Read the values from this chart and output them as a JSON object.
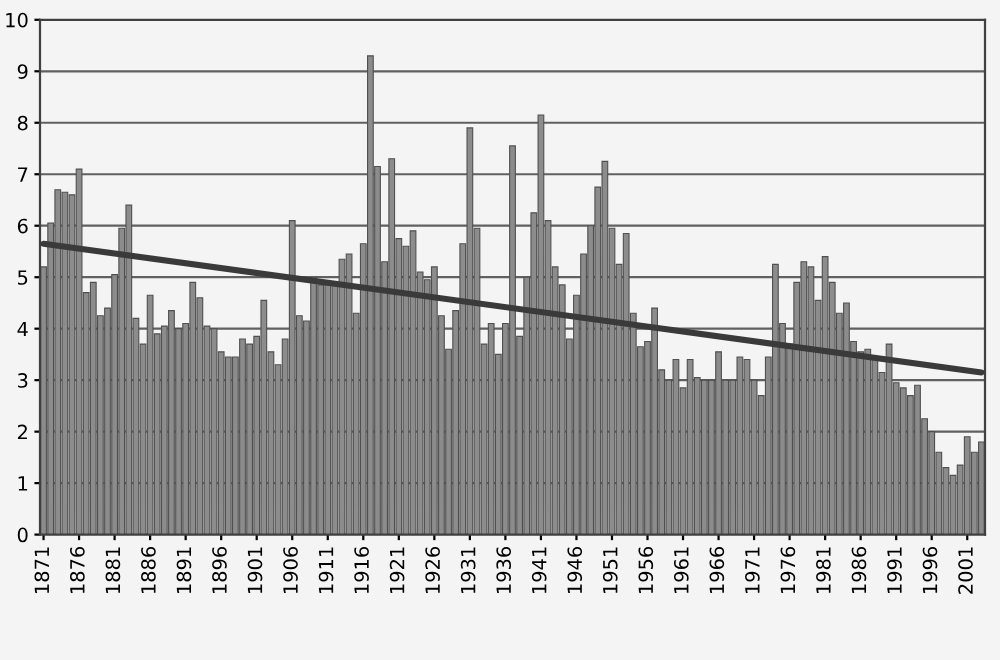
{
  "chart_data": {
    "type": "bar",
    "x": [
      1871,
      1872,
      1873,
      1874,
      1875,
      1876,
      1877,
      1878,
      1879,
      1880,
      1881,
      1882,
      1883,
      1884,
      1885,
      1886,
      1887,
      1888,
      1889,
      1890,
      1891,
      1892,
      1893,
      1894,
      1895,
      1896,
      1897,
      1898,
      1899,
      1900,
      1901,
      1902,
      1903,
      1904,
      1905,
      1906,
      1907,
      1908,
      1909,
      1910,
      1911,
      1912,
      1913,
      1914,
      1915,
      1916,
      1917,
      1918,
      1919,
      1920,
      1921,
      1922,
      1923,
      1924,
      1925,
      1926,
      1927,
      1928,
      1929,
      1930,
      1931,
      1932,
      1933,
      1934,
      1935,
      1936,
      1937,
      1938,
      1939,
      1940,
      1941,
      1942,
      1943,
      1944,
      1945,
      1946,
      1947,
      1948,
      1949,
      1950,
      1951,
      1952,
      1953,
      1954,
      1955,
      1956,
      1957,
      1958,
      1959,
      1960,
      1961,
      1962,
      1963,
      1964,
      1965,
      1966,
      1967,
      1968,
      1969,
      1970,
      1971,
      1972,
      1973,
      1974,
      1975,
      1976,
      1977,
      1978,
      1979,
      1980,
      1981,
      1982,
      1983,
      1984,
      1985,
      1986,
      1987,
      1988,
      1989,
      1990,
      1991,
      1992,
      1993,
      1994,
      1995,
      1996,
      1997,
      1998,
      1999,
      2000,
      2001,
      2002,
      2003
    ],
    "series": [
      {
        "color": "#8c8c8c",
        "values": [
          5.2,
          6.05,
          6.7,
          6.65,
          6.6,
          7.1,
          4.7,
          4.9,
          4.25,
          4.4,
          5.05,
          5.95,
          6.4,
          4.2,
          3.7,
          4.65,
          3.9,
          4.05,
          4.35,
          4.0,
          4.1,
          4.9,
          4.6,
          4.05,
          4.0,
          3.55,
          3.45,
          3.45,
          3.8,
          3.7,
          3.85,
          4.55,
          3.55,
          3.3,
          3.8,
          6.1,
          4.25,
          4.15,
          5.0,
          4.85,
          4.85,
          4.85,
          5.35,
          5.45,
          4.3,
          5.65,
          9.3,
          7.15,
          5.3,
          7.3,
          5.75,
          5.6,
          5.9,
          5.1,
          4.95,
          5.2,
          4.25,
          3.6,
          4.35,
          5.65,
          7.9,
          5.95,
          3.7,
          4.1,
          3.5,
          4.1,
          7.55,
          3.85,
          5.0,
          6.25,
          8.15,
          6.1,
          5.2,
          4.85,
          3.8,
          4.65,
          5.45,
          6.0,
          6.75,
          7.25,
          5.95,
          5.25,
          5.85,
          4.3,
          3.65,
          3.75,
          4.4,
          3.2,
          3.0,
          3.4,
          2.85,
          3.4,
          3.05,
          3.0,
          3.0,
          3.55,
          3.0,
          3.0,
          3.45,
          3.4,
          3.0,
          2.7,
          3.45,
          5.25,
          4.1,
          3.7,
          4.9,
          5.3,
          5.2,
          4.55,
          5.4,
          4.9,
          4.3,
          4.5,
          3.75,
          3.55,
          3.6,
          3.45,
          3.15,
          3.7,
          2.95,
          2.85,
          2.7,
          2.9,
          2.25,
          2.0,
          1.6,
          1.3,
          1.15,
          1.35,
          1.9,
          1.6,
          1.8
        ]
      },
      {
        "type": "line",
        "color": "#3a3a3a",
        "x": [
          1871,
          2003
        ],
        "values": [
          5.65,
          3.15
        ]
      }
    ],
    "xlim": [
      1870.5,
      2003.5
    ],
    "xticks": [
      1871,
      1876,
      1881,
      1886,
      1891,
      1896,
      1901,
      1906,
      1911,
      1916,
      1921,
      1926,
      1931,
      1936,
      1941,
      1946,
      1951,
      1956,
      1961,
      1966,
      1971,
      1976,
      1981,
      1986,
      1991,
      1996,
      2001
    ],
    "ylim": [
      0,
      10
    ],
    "yticks": [
      0,
      1,
      2,
      3,
      4,
      5,
      6,
      7,
      8,
      9,
      10
    ],
    "grid": "y"
  }
}
